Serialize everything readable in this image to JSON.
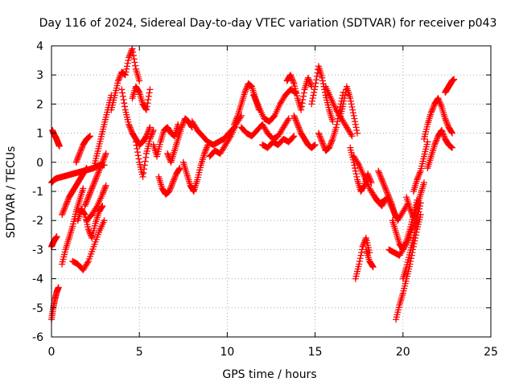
{
  "chart_data": {
    "type": "scatter",
    "title": "Day 116 of 2024, Sidereal Day-to-day VTEC variation (SDTVAR) for receiver p043",
    "xlabel": "GPS time / hours",
    "ylabel": "SDTVAR / TECUs",
    "xlim": [
      0,
      25
    ],
    "ylim": [
      -6,
      4
    ],
    "xticks": [
      0,
      5,
      10,
      15,
      20,
      25
    ],
    "yticks": [
      -6,
      -5,
      -4,
      -3,
      -2,
      -1,
      0,
      1,
      2,
      3,
      4
    ],
    "grid": true,
    "legend": "none",
    "marker": "+",
    "color": "#ff0000",
    "series": [
      {
        "name": "track-01",
        "x": [
          0.0,
          0.15,
          0.3
        ],
        "y": [
          -0.7,
          -0.6,
          -0.55
        ]
      },
      {
        "name": "track-02",
        "x": [
          0.05,
          0.15,
          0.25,
          0.35,
          0.45
        ],
        "y": [
          1.1,
          0.95,
          0.85,
          0.7,
          0.55
        ]
      },
      {
        "name": "track-03",
        "x": [
          0.0,
          0.1,
          0.2,
          0.3
        ],
        "y": [
          -2.9,
          -2.75,
          -2.65,
          -2.55
        ]
      },
      {
        "name": "track-04",
        "x": [
          0.0,
          0.1,
          0.2,
          0.3,
          0.4
        ],
        "y": [
          -5.4,
          -5.0,
          -4.7,
          -4.45,
          -4.3
        ]
      },
      {
        "name": "track-05",
        "x": [
          0.3,
          0.6,
          0.9,
          1.2,
          1.5,
          1.8,
          2.1,
          2.4,
          2.7,
          3.0
        ],
        "y": [
          -0.55,
          -0.5,
          -0.45,
          -0.4,
          -0.35,
          -0.3,
          -0.25,
          -0.2,
          -0.1,
          -0.1
        ]
      },
      {
        "name": "track-06",
        "x": [
          0.6,
          0.8,
          1.0,
          1.2,
          1.4,
          1.6,
          1.8
        ],
        "y": [
          -3.5,
          -3.0,
          -2.6,
          -2.2,
          -1.7,
          -1.3,
          -0.9
        ]
      },
      {
        "name": "track-07",
        "x": [
          0.6,
          0.8,
          1.0,
          1.2,
          1.4,
          1.6,
          1.8,
          2.0
        ],
        "y": [
          -1.8,
          -1.5,
          -1.2,
          -1.0,
          -0.8,
          -0.6,
          -0.4,
          -0.2
        ]
      },
      {
        "name": "track-08",
        "x": [
          1.4,
          1.6,
          1.8,
          2.0,
          2.2
        ],
        "y": [
          0.0,
          0.3,
          0.6,
          0.8,
          0.9
        ]
      },
      {
        "name": "track-09",
        "x": [
          1.2,
          1.5,
          1.8,
          2.1,
          2.4,
          2.7,
          3.0
        ],
        "y": [
          -3.4,
          -3.5,
          -3.7,
          -3.4,
          -2.9,
          -2.4,
          -2.0
        ]
      },
      {
        "name": "track-10",
        "x": [
          1.5,
          1.7,
          1.9,
          2.1,
          2.3,
          2.5,
          2.7,
          2.9
        ],
        "y": [
          -2.0,
          -1.6,
          -1.8,
          -2.3,
          -2.6,
          -2.1,
          -1.7,
          -1.5
        ]
      },
      {
        "name": "track-11",
        "x": [
          1.9,
          2.1,
          2.3,
          2.5,
          2.7,
          2.9,
          3.1
        ],
        "y": [
          -1.5,
          -1.2,
          -0.9,
          -0.6,
          -0.3,
          0.0,
          0.3
        ]
      },
      {
        "name": "track-12",
        "x": [
          2.4,
          2.6,
          2.8,
          3.0,
          3.2,
          3.4
        ],
        "y": [
          -0.2,
          0.3,
          0.8,
          1.3,
          1.8,
          2.3
        ]
      },
      {
        "name": "track-13",
        "x": [
          2.0,
          2.3,
          2.6,
          2.9,
          3.1
        ],
        "y": [
          -2.0,
          -1.8,
          -1.5,
          -1.1,
          -0.8
        ]
      },
      {
        "name": "track-14",
        "x": [
          3.4,
          3.6,
          3.8,
          4.0,
          4.2,
          4.4,
          4.6,
          4.8,
          5.0
        ],
        "y": [
          1.8,
          2.3,
          2.8,
          3.1,
          3.0,
          3.6,
          3.9,
          3.2,
          2.8
        ]
      },
      {
        "name": "track-15",
        "x": [
          4.0,
          4.2,
          4.4,
          4.6,
          4.8,
          5.0,
          5.2,
          5.4,
          5.6
        ],
        "y": [
          2.5,
          1.8,
          1.3,
          1.0,
          0.8,
          0.6,
          0.7,
          0.9,
          1.2
        ]
      },
      {
        "name": "track-16",
        "x": [
          4.6,
          4.8,
          5.0,
          5.2,
          5.4,
          5.6
        ],
        "y": [
          2.2,
          2.6,
          2.4,
          2.0,
          1.8,
          2.5
        ]
      },
      {
        "name": "track-17",
        "x": [
          4.8,
          5.0,
          5.2,
          5.4,
          5.6,
          5.8
        ],
        "y": [
          0.7,
          0.0,
          -0.5,
          0.3,
          0.8,
          1.1
        ]
      },
      {
        "name": "track-18",
        "x": [
          5.8,
          6.0,
          6.2,
          6.4,
          6.6,
          6.8,
          7.0,
          7.2
        ],
        "y": [
          0.6,
          0.2,
          0.7,
          1.1,
          1.2,
          1.0,
          0.9,
          1.3
        ]
      },
      {
        "name": "track-19",
        "x": [
          6.1,
          6.3,
          6.5,
          6.7,
          6.9,
          7.1,
          7.3
        ],
        "y": [
          -0.5,
          -0.9,
          -1.1,
          -1.0,
          -0.7,
          -0.4,
          -0.2
        ]
      },
      {
        "name": "track-20",
        "x": [
          6.6,
          6.8,
          7.0,
          7.2,
          7.4,
          7.6,
          7.8,
          8.0
        ],
        "y": [
          0.3,
          0.0,
          0.4,
          0.8,
          1.2,
          1.5,
          1.4,
          1.2
        ]
      },
      {
        "name": "track-21",
        "x": [
          7.5,
          7.7,
          7.9,
          8.1,
          8.3,
          8.5,
          8.7,
          8.9
        ],
        "y": [
          0.0,
          -0.4,
          -0.8,
          -1.0,
          -0.6,
          -0.1,
          0.3,
          0.6
        ]
      },
      {
        "name": "track-22",
        "x": [
          8.0,
          8.3,
          8.6,
          8.9,
          9.2,
          9.5,
          9.8,
          10.1,
          10.4
        ],
        "y": [
          1.4,
          1.1,
          0.9,
          0.7,
          0.6,
          0.7,
          0.8,
          1.0,
          1.2
        ]
      },
      {
        "name": "track-23",
        "x": [
          9.0,
          9.3,
          9.6,
          9.9,
          10.2,
          10.5,
          10.8
        ],
        "y": [
          0.2,
          0.4,
          0.3,
          0.6,
          0.9,
          1.3,
          1.6
        ]
      },
      {
        "name": "track-24",
        "x": [
          10.4,
          10.6,
          10.8,
          11.0,
          11.2,
          11.4,
          11.6,
          11.8
        ],
        "y": [
          1.3,
          1.6,
          2.0,
          2.4,
          2.7,
          2.6,
          2.2,
          1.8
        ]
      },
      {
        "name": "track-25",
        "x": [
          10.8,
          11.1,
          11.4,
          11.7,
          12.0,
          12.3,
          12.6,
          12.9,
          13.2,
          13.5
        ],
        "y": [
          1.2,
          1.0,
          0.9,
          1.1,
          1.3,
          1.0,
          0.8,
          0.9,
          1.2,
          1.5
        ]
      },
      {
        "name": "track-26",
        "x": [
          11.5,
          11.8,
          12.1,
          12.4,
          12.7,
          13.0,
          13.3,
          13.6,
          13.9
        ],
        "y": [
          2.3,
          1.9,
          1.5,
          1.4,
          1.6,
          2.0,
          2.3,
          2.5,
          2.4
        ]
      },
      {
        "name": "track-27",
        "x": [
          12.0,
          12.3,
          12.6,
          12.9,
          13.2,
          13.5,
          13.8
        ],
        "y": [
          0.6,
          0.5,
          0.7,
          0.6,
          0.8,
          0.7,
          0.9
        ]
      },
      {
        "name": "track-28",
        "x": [
          13.4,
          13.6,
          13.8,
          14.0,
          14.2,
          14.4,
          14.6,
          14.8
        ],
        "y": [
          2.8,
          3.0,
          2.7,
          2.2,
          1.8,
          2.5,
          2.9,
          2.6
        ]
      },
      {
        "name": "track-29",
        "x": [
          13.8,
          14.0,
          14.2,
          14.4,
          14.6,
          14.8,
          15.0
        ],
        "y": [
          1.6,
          1.3,
          1.0,
          0.8,
          0.6,
          0.5,
          0.6
        ]
      },
      {
        "name": "track-30",
        "x": [
          14.8,
          15.0,
          15.2,
          15.4,
          15.6,
          15.8,
          16.0
        ],
        "y": [
          2.0,
          2.6,
          3.3,
          2.9,
          2.3,
          1.8,
          1.4
        ]
      },
      {
        "name": "track-31",
        "x": [
          15.2,
          15.4,
          15.6,
          15.8,
          16.0,
          16.2,
          16.4,
          16.6
        ],
        "y": [
          1.0,
          0.7,
          0.4,
          0.5,
          0.8,
          1.2,
          1.8,
          2.4
        ]
      },
      {
        "name": "track-32",
        "x": [
          15.6,
          15.9,
          16.2,
          16.5,
          16.8,
          17.1
        ],
        "y": [
          2.6,
          2.2,
          1.8,
          1.5,
          1.2,
          0.9
        ]
      },
      {
        "name": "track-33",
        "x": [
          16.4,
          16.6,
          16.8,
          17.0,
          17.2,
          17.4
        ],
        "y": [
          1.5,
          2.0,
          2.6,
          2.2,
          1.6,
          1.0
        ]
      },
      {
        "name": "track-34",
        "x": [
          17.0,
          17.2,
          17.4,
          17.6,
          17.8,
          18.0,
          18.2
        ],
        "y": [
          0.5,
          0.0,
          -0.6,
          -1.0,
          -0.8,
          -0.4,
          -0.7
        ]
      },
      {
        "name": "track-35",
        "x": [
          17.2,
          17.5,
          17.8,
          18.1,
          18.4,
          18.7,
          19.0
        ],
        "y": [
          0.2,
          -0.1,
          -0.5,
          -0.9,
          -1.2,
          -1.4,
          -1.3
        ]
      },
      {
        "name": "track-36",
        "x": [
          17.3,
          17.5,
          17.7,
          17.9,
          18.1
        ],
        "y": [
          -4.0,
          -3.5,
          -2.9,
          -2.6,
          -3.1
        ]
      },
      {
        "name": "track-37",
        "x": [
          17.9,
          18.1,
          18.3
        ],
        "y": [
          -3.0,
          -3.4,
          -3.6
        ]
      },
      {
        "name": "track-38",
        "x": [
          18.2,
          18.5,
          18.8,
          19.1,
          19.4,
          19.7,
          20.0,
          20.3
        ],
        "y": [
          -1.0,
          -1.3,
          -1.5,
          -1.2,
          -1.6,
          -2.0,
          -1.7,
          -1.4
        ]
      },
      {
        "name": "track-39",
        "x": [
          18.6,
          18.8,
          19.0,
          19.2,
          19.4,
          19.6
        ],
        "y": [
          -0.3,
          -0.6,
          -0.9,
          -1.2,
          -1.5,
          -1.9
        ]
      },
      {
        "name": "track-40",
        "x": [
          19.4,
          19.6,
          19.8,
          20.0,
          20.2,
          20.4,
          20.6,
          20.8
        ],
        "y": [
          -2.0,
          -2.4,
          -2.8,
          -3.0,
          -2.7,
          -2.3,
          -1.8,
          -1.3
        ]
      },
      {
        "name": "track-41",
        "x": [
          19.2,
          19.5,
          19.8,
          20.1,
          20.4,
          20.7,
          21.0
        ],
        "y": [
          -3.0,
          -3.1,
          -3.2,
          -2.9,
          -2.5,
          -2.0,
          -1.4
        ]
      },
      {
        "name": "track-42",
        "x": [
          19.6,
          19.8,
          20.0,
          20.2,
          20.4,
          20.6,
          20.8,
          21.0
        ],
        "y": [
          -5.4,
          -4.9,
          -4.5,
          -4.0,
          -3.5,
          -2.9,
          -2.3,
          -1.8
        ]
      },
      {
        "name": "track-43",
        "x": [
          20.0,
          20.2,
          20.4,
          20.6,
          20.8,
          21.0
        ],
        "y": [
          -4.0,
          -3.6,
          -3.1,
          -2.6,
          -2.0,
          -1.4
        ]
      },
      {
        "name": "track-44",
        "x": [
          20.2,
          20.4,
          20.6,
          20.8,
          21.0,
          21.2
        ],
        "y": [
          -1.2,
          -1.6,
          -1.9,
          -1.5,
          -1.1,
          -0.7
        ]
      },
      {
        "name": "track-45",
        "x": [
          20.6,
          20.8,
          21.0,
          21.2,
          21.4
        ],
        "y": [
          -1.0,
          -0.6,
          -0.3,
          0.2,
          0.7
        ]
      },
      {
        "name": "track-46",
        "x": [
          21.2,
          21.4,
          21.6,
          21.8,
          22.0,
          22.2,
          22.4,
          22.6,
          22.8
        ],
        "y": [
          0.8,
          1.3,
          1.7,
          2.0,
          2.2,
          1.9,
          1.5,
          1.2,
          1.0
        ]
      },
      {
        "name": "track-47",
        "x": [
          21.4,
          21.6,
          21.8,
          22.0,
          22.2,
          22.4,
          22.6,
          22.8
        ],
        "y": [
          -0.2,
          0.2,
          0.6,
          0.9,
          1.1,
          0.8,
          0.6,
          0.5
        ]
      },
      {
        "name": "track-48",
        "x": [
          22.4,
          22.5,
          22.6,
          22.7,
          22.8,
          22.9
        ],
        "y": [
          2.4,
          2.5,
          2.6,
          2.7,
          2.8,
          2.85
        ]
      }
    ]
  }
}
